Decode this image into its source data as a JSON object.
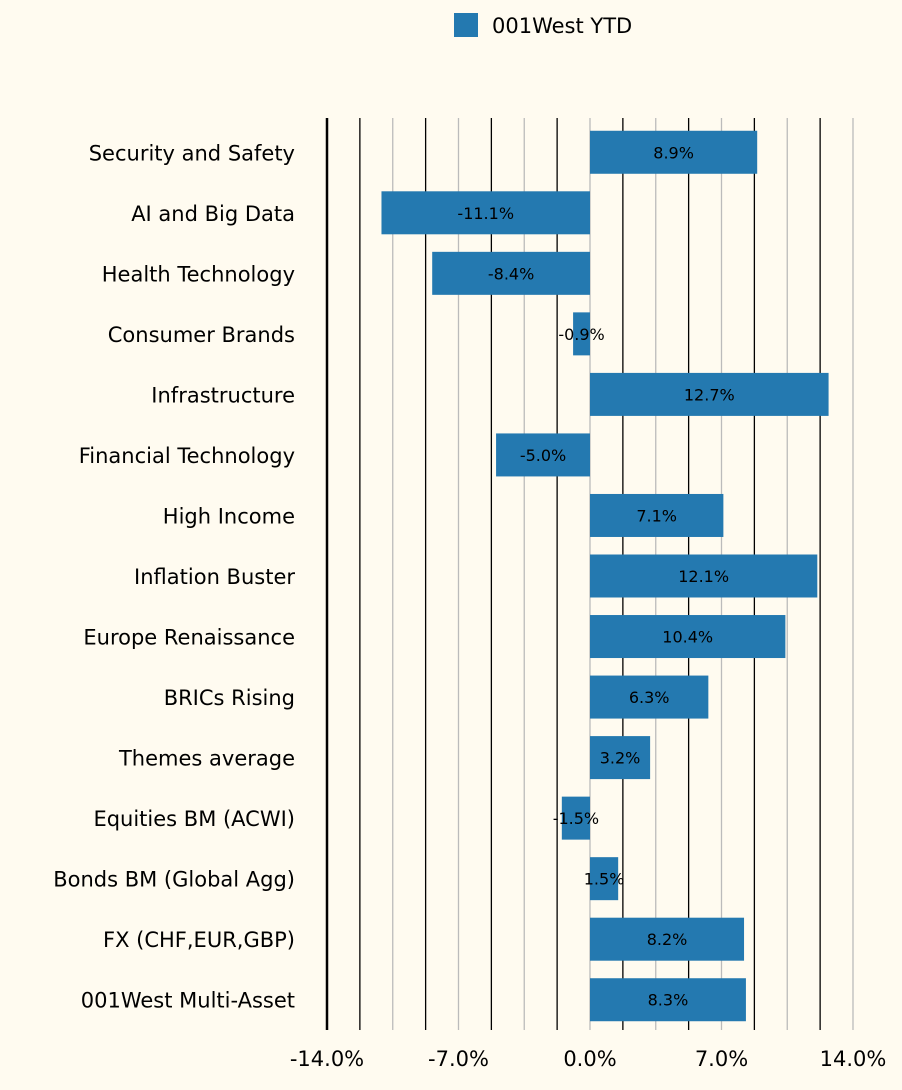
{
  "chart_data": {
    "type": "bar",
    "orientation": "horizontal",
    "title": "",
    "xlabel": "",
    "ylabel": "",
    "xlim": [
      -14,
      14
    ],
    "grid": true,
    "legend_position": "top-center",
    "x_ticks": [
      "-14.0%",
      "-7.0%",
      "0.0%",
      "7.0%",
      "14.0%"
    ],
    "x_tick_values": [
      -14,
      -7,
      0,
      7,
      14
    ],
    "categories": [
      "Security and Safety",
      "AI and Big Data",
      "Health Technology",
      "Consumer Brands",
      "Infrastructure",
      "Financial Technology",
      "High Income",
      "Inflation Buster",
      "Europe Renaissance",
      "BRICs Rising",
      "Themes average",
      "Equities BM (ACWI)",
      "Bonds BM (Global Agg)",
      "FX (CHF,EUR,GBP)",
      "001West Multi-Asset"
    ],
    "series": [
      {
        "name": "001West YTD",
        "color": "#2479b0",
        "values": [
          8.9,
          -11.1,
          -8.4,
          -0.9,
          12.7,
          -5.0,
          7.1,
          12.1,
          10.4,
          6.3,
          3.2,
          -1.5,
          1.5,
          8.2,
          8.3
        ],
        "labels": [
          "8.9%",
          "-11.1%",
          "-8.4%",
          "-0.9%",
          "12.7%",
          "-5.0%",
          "7.1%",
          "12.1%",
          "10.4%",
          "6.3%",
          "3.2%",
          "-1.5%",
          "1.5%",
          "8.2%",
          "8.3%"
        ]
      }
    ]
  }
}
